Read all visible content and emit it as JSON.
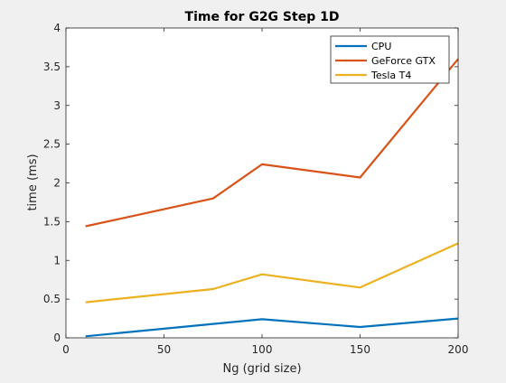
{
  "chart_data": {
    "type": "line",
    "title": "Time for G2G Step 1D",
    "xlabel": "Ng (grid size)",
    "ylabel": "time (ms)",
    "xlim": [
      0,
      200
    ],
    "ylim": [
      0,
      4
    ],
    "x_ticks": [
      0,
      50,
      100,
      150,
      200
    ],
    "y_ticks": [
      0,
      0.5,
      1,
      1.5,
      2,
      2.5,
      3,
      3.5,
      4
    ],
    "x_tick_labels": [
      "0",
      "50",
      "100",
      "150",
      "200"
    ],
    "y_tick_labels": [
      "0",
      "0.5",
      "1",
      "1.5",
      "2",
      "2.5",
      "3",
      "3.5",
      "4"
    ],
    "grid": false,
    "legend_position": "top-right",
    "x": [
      10,
      75,
      100,
      150,
      200
    ],
    "series": [
      {
        "name": "CPU",
        "color": "#0072BD",
        "values": [
          0.02,
          0.18,
          0.24,
          0.14,
          0.25
        ]
      },
      {
        "name": "GeForce GTX",
        "color": "#D95319",
        "values": [
          1.44,
          1.8,
          2.24,
          2.07,
          3.6
        ]
      },
      {
        "name": "Tesla T4",
        "color": "#EDB120",
        "values": [
          0.46,
          0.63,
          0.82,
          0.65,
          1.22
        ]
      }
    ]
  }
}
